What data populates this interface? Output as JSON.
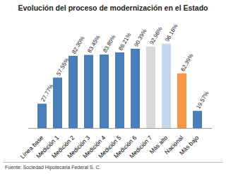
{
  "chart_data": {
    "type": "bar",
    "title": "Evolución del proceso de modernización en el Estado",
    "caption": "Fuente: Sociedad Hipotecaria Federal S. C.",
    "categories": [
      "Línea base",
      "Medición 1",
      "Medición 2",
      "Medición 3",
      "Medición 4",
      "Medición 5",
      "Medición 6",
      "Medición 7",
      "Más alto",
      "Nacional",
      "Más bajo"
    ],
    "values": [
      27.77,
      57.55,
      82.3,
      83.45,
      83.8,
      86.21,
      90.39,
      92.96,
      96.16,
      62.39,
      19.57
    ],
    "value_labels": [
      "27.77%",
      "57.55%",
      "82.30%",
      "83.45%",
      "83.80%",
      "86.21%",
      "90.39%",
      "92.96%",
      "96.16%",
      "62.39%",
      "19.57%"
    ],
    "colors": [
      "#4a7ebb",
      "#4a7ebb",
      "#4a7ebb",
      "#4a7ebb",
      "#4a7ebb",
      "#4a7ebb",
      "#4a7ebb",
      "#d9d9d9",
      "#c6d9f1",
      "#f79646",
      "#4a7ebb"
    ],
    "ylim": [
      0,
      100
    ],
    "data_labels": true,
    "tick_labels": "x",
    "grid": false
  }
}
